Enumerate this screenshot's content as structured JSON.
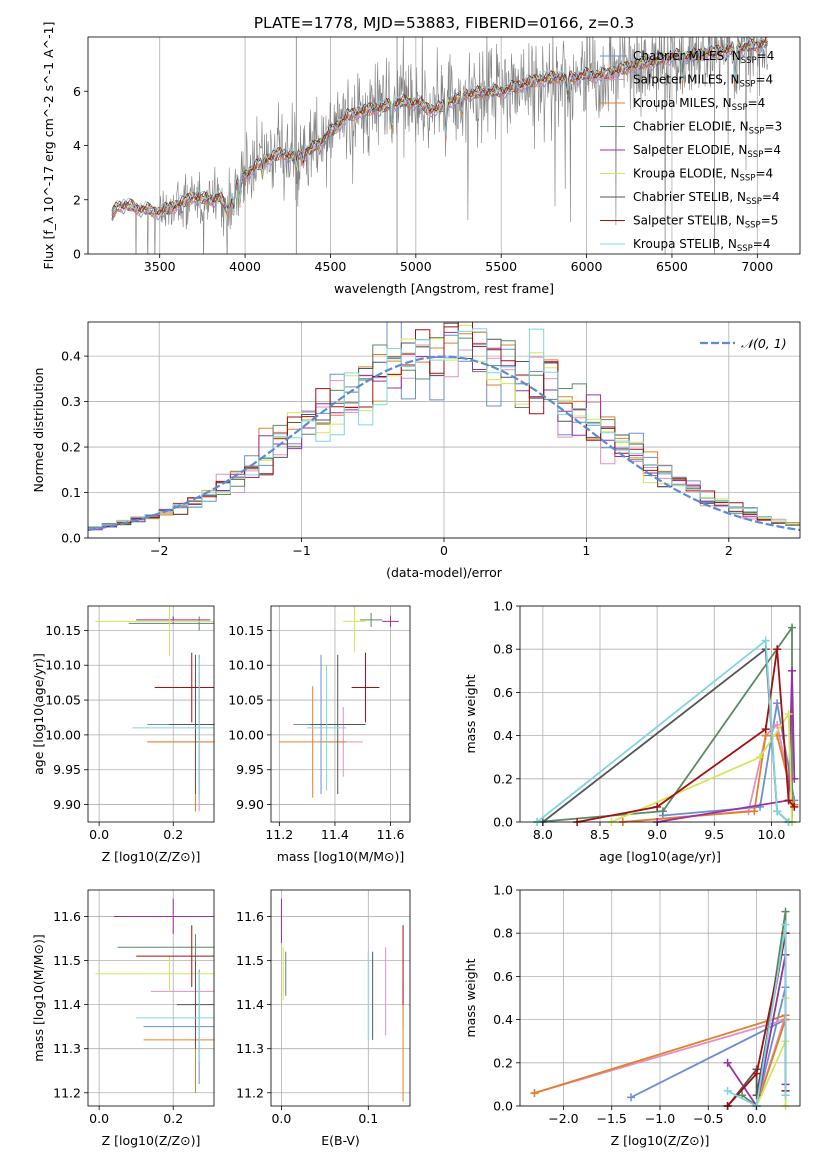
{
  "figure_title": "PLATE=1778, MJD=53883, FIBERID=0166, z=0.3",
  "colors": {
    "Chabrier MILES": "#6a8fd6",
    "Salpeter MILES": "#e68fc3",
    "Kroupa MILES": "#e0802a",
    "Chabrier ELODIE": "#5a8a64",
    "Salpeter ELODIE": "#9b2fa3",
    "Kroupa ELODIE": "#d4e65a",
    "Chabrier STELIB": "#555555",
    "Salpeter STELIB": "#a31010",
    "Kroupa STELIB": "#7fd6e0",
    "data": "#808080",
    "normal": "#5b8bd6"
  },
  "chart_data": [
    {
      "id": "spectrum",
      "type": "line",
      "title": "PLATE=1778, MJD=53883, FIBERID=0166, z=0.3",
      "xlabel": "wavelength [Angstrom, rest frame]",
      "ylabel": "Flux [f_λ 10^-17 erg cm^-2 s^-1 A^-1]",
      "xlim": [
        3080,
        7250
      ],
      "ylim": [
        0,
        8
      ],
      "xticks": [
        3500,
        4000,
        4500,
        5000,
        5500,
        6000,
        6500,
        7000
      ],
      "yticks": [
        0,
        2,
        4,
        6
      ],
      "legend_loc": "upper-right",
      "legend": [
        {
          "label": "Chabrier MILES, N_SSP=4",
          "base": "Chabrier MILES, N",
          "sub": "SSP",
          "tail": "=4"
        },
        {
          "label": "Salpeter MILES, N_SSP=4",
          "base": "Salpeter MILES, N",
          "sub": "SSP",
          "tail": "=4"
        },
        {
          "label": "Kroupa MILES, N_SSP=4",
          "base": "Kroupa MILES, N",
          "sub": "SSP",
          "tail": "=4"
        },
        {
          "label": "Chabrier ELODIE, N_SSP=3",
          "base": "Chabrier ELODIE, N",
          "sub": "SSP",
          "tail": "=3"
        },
        {
          "label": "Salpeter ELODIE, N_SSP=4",
          "base": "Salpeter ELODIE, N",
          "sub": "SSP",
          "tail": "=4"
        },
        {
          "label": "Kroupa ELODIE, N_SSP=4",
          "base": "Kroupa ELODIE, N",
          "sub": "SSP",
          "tail": "=4"
        },
        {
          "label": "Chabrier STELIB, N_SSP=4",
          "base": "Chabrier STELIB, N",
          "sub": "SSP",
          "tail": "=4"
        },
        {
          "label": "Salpeter STELIB, N_SSP=5",
          "base": "Salpeter STELIB, N",
          "sub": "SSP",
          "tail": "=5"
        },
        {
          "label": "Kroupa STELIB, N_SSP=4",
          "base": "Kroupa STELIB, N",
          "sub": "SSP",
          "tail": "=4"
        }
      ],
      "model_envelope": [
        [
          3220,
          1.4
        ],
        [
          3250,
          1.75
        ],
        [
          3300,
          1.8
        ],
        [
          3400,
          1.65
        ],
        [
          3500,
          1.55
        ],
        [
          3600,
          1.8
        ],
        [
          3700,
          2.1
        ],
        [
          3800,
          2.0
        ],
        [
          3850,
          2.1
        ],
        [
          3900,
          1.6
        ],
        [
          3950,
          2.6
        ],
        [
          4000,
          2.9
        ],
        [
          4100,
          3.4
        ],
        [
          4200,
          3.7
        ],
        [
          4300,
          3.6
        ],
        [
          4400,
          3.9
        ],
        [
          4500,
          4.5
        ],
        [
          4600,
          5.1
        ],
        [
          4700,
          5.3
        ],
        [
          4800,
          5.4
        ],
        [
          4900,
          5.6
        ],
        [
          5000,
          5.6
        ],
        [
          5100,
          5.3
        ],
        [
          5200,
          5.6
        ],
        [
          5300,
          5.9
        ],
        [
          5400,
          5.95
        ],
        [
          5500,
          6.0
        ],
        [
          5600,
          6.2
        ],
        [
          5700,
          6.4
        ],
        [
          5800,
          6.5
        ],
        [
          5900,
          6.5
        ],
        [
          6000,
          6.6
        ],
        [
          6100,
          6.6
        ],
        [
          6200,
          6.8
        ],
        [
          6300,
          7.0
        ],
        [
          6400,
          7.1
        ],
        [
          6500,
          7.3
        ],
        [
          6600,
          7.3
        ],
        [
          6700,
          7.4
        ],
        [
          6800,
          7.5
        ],
        [
          6900,
          7.6
        ],
        [
          7000,
          7.7
        ],
        [
          7050,
          7.8
        ]
      ],
      "absorption_features": [
        [
          3934,
          1.7
        ],
        [
          3969,
          1.8
        ],
        [
          4102,
          3.0
        ],
        [
          4300,
          3.2
        ],
        [
          4340,
          3.4
        ],
        [
          4861,
          4.6
        ],
        [
          5175,
          4.3
        ],
        [
          5270,
          5.2
        ],
        [
          5890,
          5.8
        ],
        [
          6563,
          6.4
        ],
        [
          6870,
          6.3
        ]
      ],
      "noise_region": [
        3500,
        7060
      ],
      "noise_amplitude": 0.8,
      "data_spikes": [
        [
          4300,
          0,
          8
        ],
        [
          4890,
          0,
          8
        ],
        [
          6750,
          0,
          8
        ]
      ]
    },
    {
      "id": "residuals",
      "type": "line",
      "xlabel": "(data-model)/error",
      "ylabel": "Normed distribution",
      "xlim": [
        -2.5,
        2.5
      ],
      "ylim": [
        0,
        0.475
      ],
      "xticks": [
        -2,
        -1,
        0,
        1,
        2
      ],
      "yticks": [
        0.0,
        0.1,
        0.2,
        0.3,
        0.4
      ],
      "legend_loc": "upper-right",
      "legend": [
        {
          "label": "N(0,1)",
          "math": "𝒩(0, 1)"
        }
      ],
      "bin_edges_start": -2.5,
      "bin_width": 0.1,
      "n_bins": 50
    },
    {
      "id": "age_vs_Z",
      "type": "scatter",
      "xlabel": "Z [log10(Z/Z⊙)]",
      "ylabel": "age [log10(age/yr)]",
      "xlim": [
        -0.03,
        0.31
      ],
      "ylim": [
        9.875,
        10.185
      ],
      "xticks": [
        0.0,
        0.2
      ],
      "yticks": [
        9.9,
        9.95,
        10.0,
        10.05,
        10.1,
        10.15
      ],
      "points": [
        {
          "series": "Chabrier MILES",
          "x": 0.27,
          "y": 10.015,
          "xerr": 0.14,
          "yerr": 0.1
        },
        {
          "series": "Salpeter MILES",
          "x": 0.27,
          "y": 9.99,
          "xerr": 0.14,
          "yerr": 0.1
        },
        {
          "series": "Kroupa MILES",
          "x": 0.26,
          "y": 9.99,
          "xerr": 0.13,
          "yerr": 0.1
        },
        {
          "series": "Chabrier ELODIE",
          "x": 0.27,
          "y": 10.16,
          "xerr": 0.19,
          "yerr": 0.01
        },
        {
          "series": "Salpeter ELODIE",
          "x": 0.2,
          "y": 10.165,
          "xerr": 0.1,
          "yerr": 0.005
        },
        {
          "series": "Kroupa ELODIE",
          "x": 0.19,
          "y": 10.163,
          "xerr": 0.2,
          "yerr": 0.05
        },
        {
          "series": "Chabrier STELIB",
          "x": 0.26,
          "y": 10.015,
          "xerr": 0.07,
          "yerr": 0.1
        },
        {
          "series": "Salpeter STELIB",
          "x": 0.25,
          "y": 10.068,
          "xerr": 0.1,
          "yerr": 0.05
        },
        {
          "series": "Kroupa STELIB",
          "x": 0.27,
          "y": 10.01,
          "xerr": 0.18,
          "yerr": 0.1
        }
      ]
    },
    {
      "id": "age_vs_mass",
      "type": "scatter",
      "xlabel": "mass [log10(M/M⊙)]",
      "ylabel": "",
      "xlim": [
        11.17,
        11.67
      ],
      "ylim": [
        9.875,
        10.185
      ],
      "xticks": [
        11.2,
        11.4,
        11.6
      ],
      "yticks": [
        9.9,
        9.95,
        10.0,
        10.05,
        10.1,
        10.15
      ],
      "points": [
        {
          "series": "Chabrier MILES",
          "x": 11.35,
          "y": 10.015,
          "xerr": 0.1,
          "yerr": 0.1
        },
        {
          "series": "Salpeter MILES",
          "x": 11.43,
          "y": 9.99,
          "xerr": 0.07,
          "yerr": 0.05
        },
        {
          "series": "Kroupa MILES",
          "x": 11.32,
          "y": 9.99,
          "xerr": 0.12,
          "yerr": 0.08
        },
        {
          "series": "Chabrier ELODIE",
          "x": 11.53,
          "y": 10.165,
          "xerr": 0.04,
          "yerr": 0.01
        },
        {
          "series": "Salpeter ELODIE",
          "x": 11.6,
          "y": 10.163,
          "xerr": 0.03,
          "yerr": 0.008
        },
        {
          "series": "Kroupa ELODIE",
          "x": 11.47,
          "y": 10.163,
          "xerr": 0.04,
          "yerr": 0.045
        },
        {
          "series": "Chabrier STELIB",
          "x": 11.41,
          "y": 10.015,
          "xerr": 0.1,
          "yerr": 0.1
        },
        {
          "series": "Salpeter STELIB",
          "x": 11.51,
          "y": 10.068,
          "xerr": 0.05,
          "yerr": 0.05
        },
        {
          "series": "Kroupa STELIB",
          "x": 11.37,
          "y": 10.01,
          "xerr": 0.07,
          "yerr": 0.09
        }
      ]
    },
    {
      "id": "weight_vs_age",
      "type": "line",
      "xlabel": "age [log10(age/yr)]",
      "ylabel": "mass weight",
      "xlim": [
        7.8,
        10.25
      ],
      "ylim": [
        0,
        1
      ],
      "xticks": [
        8.0,
        8.5,
        9.0,
        9.5,
        10.0
      ],
      "yticks": [
        0.0,
        0.2,
        0.4,
        0.6,
        0.8,
        1.0
      ],
      "series": [
        {
          "name": "Chabrier MILES",
          "x": [
            9.05,
            9.9,
            10.05,
            10.1,
            10.2
          ],
          "y": [
            0.03,
            0.07,
            0.55,
            0.4,
            0.1
          ]
        },
        {
          "name": "Salpeter MILES",
          "x": [
            8.7,
            9.8,
            9.95,
            10.05,
            10.2
          ],
          "y": [
            0.0,
            0.05,
            0.4,
            0.45,
            0.08
          ]
        },
        {
          "name": "Kroupa MILES",
          "x": [
            8.7,
            9.85,
            9.95,
            10.05,
            10.2
          ],
          "y": [
            0.0,
            0.05,
            0.4,
            0.4,
            0.08
          ]
        },
        {
          "name": "Chabrier ELODIE",
          "x": [
            7.95,
            9.05,
            10.18,
            10.18
          ],
          "y": [
            0.0,
            0.05,
            0.9,
            0.0
          ]
        },
        {
          "name": "Salpeter ELODIE",
          "x": [
            9.0,
            10.15,
            10.18,
            10.2
          ],
          "y": [
            0.0,
            0.1,
            0.7,
            0.2
          ]
        },
        {
          "name": "Kroupa ELODIE",
          "x": [
            8.6,
            9.9,
            10.15,
            10.18
          ],
          "y": [
            0.0,
            0.3,
            0.5,
            0.0
          ]
        },
        {
          "name": "Chabrier STELIB",
          "x": [
            8.0,
            9.95,
            10.05,
            10.15
          ],
          "y": [
            0.0,
            0.8,
            0.05,
            0.0
          ]
        },
        {
          "name": "Salpeter STELIB",
          "x": [
            8.3,
            9.0,
            9.95,
            10.05,
            10.15,
            10.2
          ],
          "y": [
            0.0,
            0.07,
            0.43,
            0.8,
            0.1,
            0.07
          ]
        },
        {
          "name": "Kroupa STELIB",
          "x": [
            7.95,
            9.95,
            10.05,
            10.15
          ],
          "y": [
            0.0,
            0.84,
            0.05,
            0.0
          ]
        }
      ]
    },
    {
      "id": "mass_vs_Z",
      "type": "scatter",
      "xlabel": "Z [log10(Z/Z⊙)]",
      "ylabel": "mass [log10(M/M⊙)]",
      "xlim": [
        -0.03,
        0.31
      ],
      "ylim": [
        11.17,
        11.66
      ],
      "xticks": [
        0.0,
        0.2
      ],
      "yticks": [
        11.2,
        11.3,
        11.4,
        11.5,
        11.6
      ],
      "points": [
        {
          "series": "Chabrier MILES",
          "x": 0.27,
          "y": 11.35,
          "xerr": 0.15,
          "yerr": 0.13
        },
        {
          "series": "Salpeter MILES",
          "x": 0.26,
          "y": 11.43,
          "xerr": 0.12,
          "yerr": 0.07
        },
        {
          "series": "Kroupa MILES",
          "x": 0.26,
          "y": 11.32,
          "xerr": 0.14,
          "yerr": 0.12
        },
        {
          "series": "Chabrier ELODIE",
          "x": 0.26,
          "y": 11.53,
          "xerr": 0.21,
          "yerr": 0.03
        },
        {
          "series": "Salpeter ELODIE",
          "x": 0.2,
          "y": 11.6,
          "xerr": 0.16,
          "yerr": 0.04
        },
        {
          "series": "Kroupa ELODIE",
          "x": 0.19,
          "y": 11.47,
          "xerr": 0.2,
          "yerr": 0.04
        },
        {
          "series": "Chabrier STELIB",
          "x": 0.26,
          "y": 11.4,
          "xerr": 0.05,
          "yerr": 0.1
        },
        {
          "series": "Salpeter STELIB",
          "x": 0.25,
          "y": 11.51,
          "xerr": 0.15,
          "yerr": 0.07
        },
        {
          "series": "Kroupa STELIB",
          "x": 0.27,
          "y": 11.37,
          "xerr": 0.17,
          "yerr": 0.1
        }
      ]
    },
    {
      "id": "mass_vs_EBV",
      "type": "scatter",
      "xlabel": "E(B-V)",
      "ylabel": "",
      "xlim": [
        -0.012,
        0.148
      ],
      "ylim": [
        11.17,
        11.66
      ],
      "xticks": [
        0.0,
        0.1
      ],
      "yticks": [
        11.2,
        11.3,
        11.4,
        11.5,
        11.6
      ],
      "points": [
        {
          "series": "Chabrier MILES",
          "x": 0.14,
          "y": 11.4,
          "yerr": 0.05
        },
        {
          "series": "Salpeter MILES",
          "x": 0.12,
          "y": 11.43,
          "yerr": 0.1
        },
        {
          "series": "Kroupa MILES",
          "x": 0.14,
          "y": 11.3,
          "yerr": 0.12
        },
        {
          "series": "Chabrier ELODIE",
          "x": 0.005,
          "y": 11.47,
          "yerr": 0.05
        },
        {
          "series": "Salpeter ELODIE",
          "x": 0.0,
          "y": 11.59,
          "yerr": 0.05
        },
        {
          "series": "Kroupa ELODIE",
          "x": 0.002,
          "y": 11.47,
          "yerr": 0.06
        },
        {
          "series": "Chabrier STELIB",
          "x": 0.105,
          "y": 11.42,
          "yerr": 0.1
        },
        {
          "series": "Salpeter STELIB",
          "x": 0.14,
          "y": 11.49,
          "yerr": 0.09
        },
        {
          "series": "Kroupa STELIB",
          "x": 0.1,
          "y": 11.42,
          "yerr": 0.1
        }
      ]
    },
    {
      "id": "weight_vs_Z",
      "type": "line",
      "xlabel": "Z [log10(Z/Z⊙)]",
      "ylabel": "mass weight",
      "xlim": [
        -2.45,
        0.45
      ],
      "ylim": [
        0,
        1
      ],
      "xticks": [
        -2.0,
        -1.5,
        -1.0,
        -0.5,
        0.0
      ],
      "yticks": [
        0.0,
        0.2,
        0.4,
        0.6,
        0.8,
        1.0
      ],
      "series": [
        {
          "name": "Chabrier MILES",
          "x": [
            -1.3,
            0.3,
            0.3,
            0.0
          ],
          "y": [
            0.04,
            0.4,
            0.55,
            0.0
          ]
        },
        {
          "name": "Salpeter MILES",
          "x": [
            -2.3,
            0.3,
            0.3,
            0.0
          ],
          "y": [
            0.06,
            0.4,
            0.42,
            0.0
          ]
        },
        {
          "name": "Kroupa MILES",
          "x": [
            -2.3,
            0.3,
            0.3,
            0.0
          ],
          "y": [
            0.06,
            0.42,
            0.4,
            0.0
          ]
        },
        {
          "name": "Chabrier ELODIE",
          "x": [
            -0.15,
            0.0,
            0.3,
            0.3
          ],
          "y": [
            0.05,
            0.0,
            0.9,
            0.05
          ]
        },
        {
          "name": "Salpeter ELODIE",
          "x": [
            -0.3,
            0.0,
            0.3,
            0.3
          ],
          "y": [
            0.2,
            0.0,
            0.7,
            0.1
          ]
        },
        {
          "name": "Kroupa ELODIE",
          "x": [
            0.3,
            0.3,
            0.3,
            0.0
          ],
          "y": [
            0.0,
            0.5,
            0.3,
            0.0
          ]
        },
        {
          "name": "Chabrier STELIB",
          "x": [
            -0.3,
            0.0,
            0.0,
            0.3
          ],
          "y": [
            0.0,
            0.17,
            0.05,
            0.8
          ]
        },
        {
          "name": "Salpeter STELIB",
          "x": [
            -0.3,
            0.0,
            0.3,
            0.3
          ],
          "y": [
            0.0,
            0.15,
            0.8,
            0.07
          ]
        },
        {
          "name": "Kroupa STELIB",
          "x": [
            -0.3,
            0.0,
            0.3,
            0.3
          ],
          "y": [
            0.07,
            0.0,
            0.84,
            0.05
          ]
        }
      ]
    }
  ]
}
